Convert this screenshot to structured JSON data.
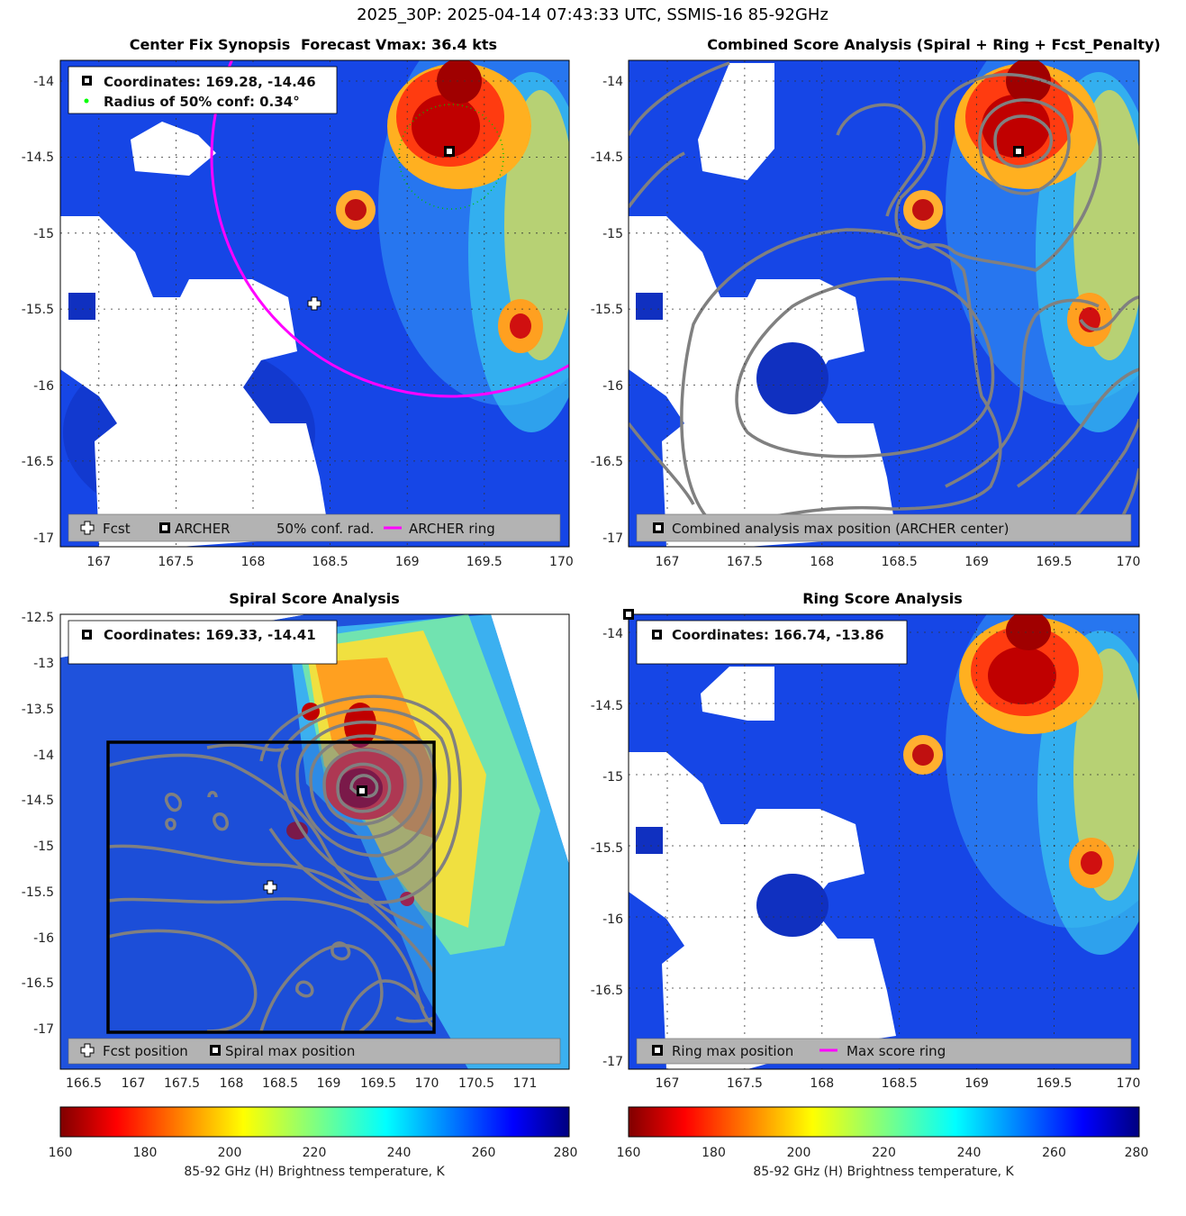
{
  "figure": {
    "suptitle": "2025_30P: 2025-04-14 07:43:33 UTC, SSMIS-16 85-92GHz"
  },
  "colors": {
    "archer_ring": "#ff00ff",
    "conf_marker": "#00ff00",
    "contour": "#808080",
    "legend_bg": "#b3b3b3",
    "no_data": "#ffffff"
  },
  "chart_data": [
    {
      "id": "center-fix",
      "type": "heatmap",
      "title": "Center Fix Synopsis",
      "title2": "Forecast Vmax: 36.4 kts",
      "xlim": [
        166.75,
        170.05
      ],
      "ylim": [
        -17.05,
        -13.85
      ],
      "xticks": [
        "167",
        "167.5",
        "168",
        "168.5",
        "169",
        "169.5",
        "170"
      ],
      "yticks": [
        "-14",
        "-14.5",
        "-15",
        "-15.5",
        "-16",
        "-16.5",
        "-17"
      ],
      "info_lines": [
        "Coordinates: 169.28, -14.46",
        "Radius of 50% conf: 0.34°"
      ],
      "legend": [
        "Fcst",
        "ARCHER",
        "50% conf. rad.",
        "ARCHER ring"
      ],
      "archer_center": [
        169.28,
        -14.46
      ],
      "forecast_position": [
        168.4,
        -15.46
      ],
      "archer_ring_radius_deg": 1.5,
      "conf_radius_deg": 0.34
    },
    {
      "id": "combined",
      "type": "heatmap",
      "title": "Combined Score Analysis (Spiral + Ring + Fcst_Penalty)",
      "xlim": [
        166.75,
        170.05
      ],
      "ylim": [
        -17.05,
        -13.85
      ],
      "xticks": [
        "167",
        "167.5",
        "168",
        "168.5",
        "169",
        "169.5",
        "170"
      ],
      "yticks": [
        "-14",
        "-14.5",
        "-15",
        "-15.5",
        "-16",
        "-16.5",
        "-17"
      ],
      "legend": [
        "Combined analysis max position (ARCHER center)"
      ],
      "max_position": [
        169.28,
        -14.46
      ]
    },
    {
      "id": "spiral",
      "type": "heatmap",
      "title": "Spiral Score Analysis",
      "xlim": [
        166.25,
        171.4
      ],
      "ylim": [
        -17.45,
        -12.5
      ],
      "xticks": [
        "166.5",
        "167",
        "167.5",
        "168",
        "168.5",
        "169",
        "169.5",
        "170",
        "170.5",
        "171"
      ],
      "yticks": [
        "-12.5",
        "-13",
        "-13.5",
        "-14",
        "-14.5",
        "-15",
        "-15.5",
        "-16",
        "-16.5",
        "-17"
      ],
      "info_lines": [
        "Coordinates: 169.33, -14.41"
      ],
      "legend": [
        "Fcst position",
        "Spiral max position"
      ],
      "max_position": [
        169.33,
        -14.41
      ],
      "forecast_position": [
        168.4,
        -15.46
      ],
      "box": {
        "x": [
          166.75,
          170.05
        ],
        "y": [
          -17.05,
          -13.85
        ]
      }
    },
    {
      "id": "ring",
      "type": "heatmap",
      "title": "Ring Score Analysis",
      "xlim": [
        166.75,
        170.05
      ],
      "ylim": [
        -17.05,
        -13.85
      ],
      "xticks": [
        "167",
        "167.5",
        "168",
        "168.5",
        "169",
        "169.5",
        "170"
      ],
      "yticks": [
        "-14",
        "-14.5",
        "-15",
        "-15.5",
        "-16",
        "-16.5",
        "-17"
      ],
      "info_lines": [
        "Coordinates: 166.74, -13.86"
      ],
      "legend": [
        "Ring max position",
        "Max score ring"
      ],
      "max_position": [
        166.74,
        -13.86
      ]
    }
  ],
  "colorbar": {
    "min": 160,
    "max": 280,
    "ticks": [
      "160",
      "180",
      "200",
      "220",
      "240",
      "260",
      "280"
    ],
    "label": "85-92 GHz (H) Brightness temperature, K"
  }
}
